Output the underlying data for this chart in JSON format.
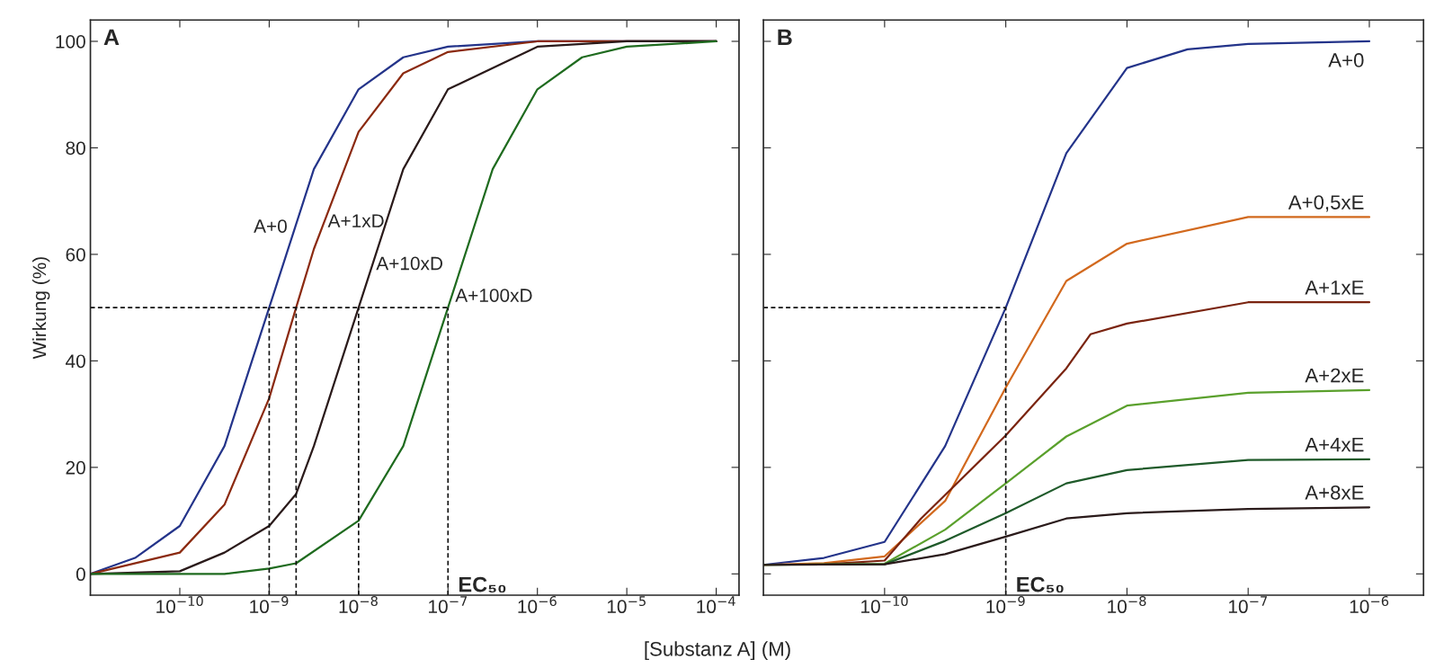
{
  "chart_data": [
    {
      "type": "line",
      "title": "A",
      "ylabel": "Wirkung (%)",
      "xlabel": "[Substanz A] (M)",
      "log": "x",
      "grid": false,
      "legend": false,
      "xlim": [
        1e-11,
        0.00018
      ],
      "ylim": [
        -4,
        104
      ],
      "xticks": [
        {
          "value": 1e-10,
          "label": "10$^{−10}$"
        },
        {
          "value": 1e-09,
          "label": "10$^{−9}$"
        },
        {
          "value": 1e-08,
          "label": "10$^{−8}$"
        },
        {
          "value": 1e-07,
          "label": "10$^{−7}$"
        },
        {
          "value": 1e-06,
          "label": "10$^{−6}$"
        },
        {
          "value": 1e-05,
          "label": "10$^{−5}$"
        },
        {
          "value": 0.0001,
          "label": "10$^{−4}$"
        }
      ],
      "yticks": [
        0,
        20,
        40,
        60,
        80,
        100
      ],
      "ref_lines": [
        {
          "axis": "y",
          "value": 50,
          "line_style": "dashed",
          "color": "#111111"
        },
        {
          "axis": "x",
          "value": 1e-09,
          "line_style": "dashed",
          "color": "#111111"
        },
        {
          "axis": "x",
          "value": 2e-09,
          "line_style": "dashed",
          "color": "#111111"
        },
        {
          "axis": "x",
          "value": 1e-08,
          "line_style": "dashed",
          "color": "#111111"
        },
        {
          "axis": "x",
          "value": 1e-07,
          "line_style": "dashed",
          "color": "#111111"
        }
      ],
      "annotations": [
        {
          "text": "EC₅₀",
          "x": 1e-07,
          "y": 0
        }
      ],
      "series": [
        {
          "name": "A+0",
          "color": "#24348a",
          "x": [
            1e-11,
            3.16e-11,
            1e-10,
            3.16e-10,
            1e-09,
            3.16e-09,
            1e-08,
            3.16e-08,
            1e-07,
            1e-06,
            0.0001
          ],
          "values": [
            0,
            3,
            9,
            24,
            50,
            76,
            91,
            97,
            99,
            100,
            100
          ]
        },
        {
          "name": "A+1xD",
          "color": "#8b2a10",
          "x": [
            1e-11,
            1e-10,
            3.16e-10,
            1e-09,
            2e-09,
            3.16e-09,
            1e-08,
            3.16e-08,
            1e-07,
            1e-06,
            0.0001
          ],
          "values": [
            0,
            4,
            13,
            33,
            50,
            61,
            83,
            94,
            98,
            100,
            100
          ]
        },
        {
          "name": "A+10xD",
          "color": "#2a1a1a",
          "x": [
            1e-11,
            1e-10,
            3.16e-10,
            1e-09,
            2e-09,
            3.16e-09,
            1e-08,
            3.16e-08,
            1e-07,
            1e-06,
            1e-05,
            0.0001
          ],
          "values": [
            0,
            0.5,
            4,
            9,
            15,
            24,
            50,
            76,
            91,
            99,
            100,
            100
          ]
        },
        {
          "name": "A+100xD",
          "color": "#1f6b1f",
          "x": [
            1e-11,
            3.16e-10,
            1e-09,
            2e-09,
            1e-08,
            3.16e-08,
            1e-07,
            3.16e-07,
            1e-06,
            3.16e-06,
            1e-05,
            0.0001
          ],
          "values": [
            0,
            0,
            1,
            2,
            10,
            24,
            50,
            76,
            91,
            97,
            99,
            100
          ]
        }
      ]
    },
    {
      "type": "line",
      "title": "B",
      "log": "x",
      "grid": false,
      "legend": false,
      "tick_labels": "x",
      "xlim": [
        1e-11,
        2.8e-06
      ],
      "ylim": [
        -4,
        104
      ],
      "xticks": [
        {
          "value": 1e-10,
          "label": "10$^{−10}$"
        },
        {
          "value": 1e-09,
          "label": "10$^{−9}$"
        },
        {
          "value": 1e-08,
          "label": "10$^{−8}$"
        },
        {
          "value": 1e-07,
          "label": "10$^{−7}$"
        },
        {
          "value": 1e-06,
          "label": "10$^{−6}$"
        }
      ],
      "yticks": [
        {
          "value": 0,
          "label": null
        },
        {
          "value": 20,
          "label": null
        },
        {
          "value": 40,
          "label": null
        },
        {
          "value": 60,
          "label": null
        },
        {
          "value": 80,
          "label": null
        },
        {
          "value": 100,
          "label": null
        }
      ],
      "ref_lines": [
        {
          "axis": "y",
          "value": 50,
          "line_style": "dashed",
          "color": "#111111"
        },
        {
          "axis": "x",
          "value": 1e-09,
          "line_style": "dashed",
          "color": "#111111"
        }
      ],
      "annotations": [
        {
          "text": "EC₅₀",
          "x": 1e-09,
          "y": 0
        }
      ],
      "series": [
        {
          "name": "A+0",
          "color": "#24348a",
          "x": [
            1e-11,
            3.16e-11,
            1e-10,
            3.16e-10,
            1e-09,
            3.16e-09,
            1e-08,
            3.16e-08,
            1e-07,
            1e-06
          ],
          "values": [
            1.7,
            3,
            6,
            24,
            50,
            79,
            95,
            98.5,
            99.5,
            100
          ]
        },
        {
          "name": "A+0,5xE",
          "color": "#d2691e",
          "x": [
            1e-11,
            3.16e-11,
            1e-10,
            3.16e-10,
            1e-09,
            3.16e-09,
            1e-08,
            1e-07,
            1e-06
          ],
          "values": [
            1.7,
            2,
            3.3,
            13.7,
            35,
            55,
            62,
            67,
            67
          ]
        },
        {
          "name": "A+1xE",
          "color": "#7a2410",
          "x": [
            1e-11,
            3.16e-11,
            1e-10,
            2e-10,
            1e-09,
            3.16e-09,
            5e-09,
            1e-08,
            1e-07,
            1e-06
          ],
          "values": [
            1.7,
            1.8,
            2.5,
            10.4,
            26,
            38.6,
            45,
            47,
            51,
            51
          ]
        },
        {
          "name": "A+2xE",
          "color": "#5aa02c",
          "x": [
            1e-11,
            1e-10,
            3.16e-10,
            1e-09,
            3.16e-09,
            1e-08,
            1e-07,
            1e-06
          ],
          "values": [
            1.7,
            1.9,
            8.3,
            17,
            25.8,
            31.6,
            34,
            34.5
          ]
        },
        {
          "name": "A+4xE",
          "color": "#1f5a2a",
          "x": [
            1e-11,
            1e-10,
            3.16e-10,
            1e-09,
            3.16e-09,
            1e-08,
            1e-07,
            1e-06
          ],
          "values": [
            1.7,
            1.8,
            6.2,
            11.4,
            17,
            19.5,
            21.4,
            21.5
          ]
        },
        {
          "name": "A+8xE",
          "color": "#2a1a1a",
          "x": [
            1e-11,
            1e-10,
            3.16e-10,
            1e-09,
            3.16e-09,
            1e-08,
            1e-07,
            1e-06
          ],
          "values": [
            1.7,
            1.8,
            3.7,
            7,
            10.4,
            11.4,
            12.2,
            12.5
          ]
        }
      ]
    }
  ]
}
